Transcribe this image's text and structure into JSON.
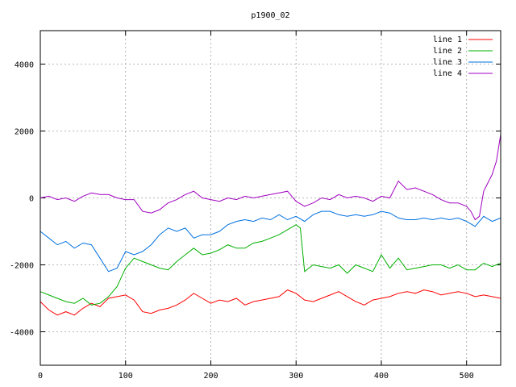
{
  "chart_data": {
    "type": "line",
    "title": "p1900_02",
    "xlabel": "",
    "ylabel": "",
    "xlim": [
      0,
      540
    ],
    "ylim": [
      -5000,
      5000
    ],
    "x_ticks": [
      0,
      100,
      200,
      300,
      400,
      500
    ],
    "y_ticks": [
      -4000,
      -2000,
      0,
      2000,
      4000
    ],
    "grid": true,
    "legend_position": "top-right",
    "series": [
      {
        "name": "line 1",
        "color": "#ff0000",
        "x": [
          0,
          10,
          20,
          30,
          40,
          50,
          60,
          70,
          80,
          90,
          100,
          110,
          120,
          130,
          140,
          150,
          160,
          170,
          180,
          190,
          200,
          210,
          220,
          230,
          240,
          250,
          260,
          270,
          280,
          290,
          300,
          310,
          320,
          330,
          340,
          350,
          360,
          370,
          380,
          390,
          400,
          410,
          420,
          430,
          440,
          450,
          460,
          470,
          480,
          490,
          500,
          510,
          520,
          530,
          540
        ],
        "y": [
          -3100,
          -3350,
          -3500,
          -3400,
          -3500,
          -3300,
          -3150,
          -3250,
          -3000,
          -2950,
          -2900,
          -3050,
          -3400,
          -3450,
          -3350,
          -3300,
          -3200,
          -3050,
          -2850,
          -3000,
          -3150,
          -3050,
          -3100,
          -3000,
          -3200,
          -3100,
          -3050,
          -3000,
          -2950,
          -2750,
          -2850,
          -3050,
          -3100,
          -3000,
          -2900,
          -2800,
          -2950,
          -3100,
          -3200,
          -3050,
          -3000,
          -2950,
          -2850,
          -2800,
          -2850,
          -2750,
          -2800,
          -2900,
          -2850,
          -2800,
          -2850,
          -2950,
          -2900,
          -2950,
          -3000
        ]
      },
      {
        "name": "line 2",
        "color": "#00b000",
        "x": [
          0,
          10,
          20,
          30,
          40,
          50,
          60,
          70,
          80,
          90,
          100,
          110,
          120,
          130,
          140,
          150,
          160,
          170,
          180,
          190,
          200,
          210,
          220,
          230,
          240,
          250,
          260,
          270,
          280,
          290,
          300,
          305,
          310,
          320,
          330,
          340,
          350,
          360,
          370,
          380,
          390,
          400,
          410,
          420,
          430,
          440,
          450,
          460,
          470,
          480,
          490,
          500,
          510,
          520,
          530,
          540
        ],
        "y": [
          -2800,
          -2900,
          -3000,
          -3100,
          -3150,
          -3000,
          -3200,
          -3150,
          -2950,
          -2650,
          -2100,
          -1800,
          -1900,
          -2000,
          -2100,
          -2150,
          -1900,
          -1700,
          -1500,
          -1700,
          -1650,
          -1550,
          -1400,
          -1500,
          -1500,
          -1350,
          -1300,
          -1200,
          -1100,
          -950,
          -800,
          -900,
          -2200,
          -2000,
          -2050,
          -2100,
          -2000,
          -2250,
          -2000,
          -2100,
          -2200,
          -1700,
          -2100,
          -1800,
          -2150,
          -2100,
          -2050,
          -2000,
          -2000,
          -2100,
          -2000,
          -2150,
          -2150,
          -1950,
          -2050,
          -1950
        ]
      },
      {
        "name": "line 3",
        "color": "#0070e0",
        "x": [
          0,
          10,
          20,
          30,
          40,
          50,
          60,
          70,
          80,
          90,
          100,
          110,
          120,
          130,
          140,
          150,
          160,
          170,
          180,
          190,
          200,
          210,
          220,
          230,
          240,
          250,
          260,
          270,
          280,
          290,
          300,
          310,
          320,
          330,
          340,
          350,
          360,
          370,
          380,
          390,
          400,
          410,
          420,
          430,
          440,
          450,
          460,
          470,
          480,
          490,
          500,
          510,
          520,
          530,
          540
        ],
        "y": [
          -1000,
          -1200,
          -1400,
          -1300,
          -1500,
          -1350,
          -1400,
          -1800,
          -2200,
          -2100,
          -1600,
          -1700,
          -1600,
          -1400,
          -1100,
          -900,
          -1000,
          -900,
          -1200,
          -1100,
          -1100,
          -1000,
          -800,
          -700,
          -650,
          -700,
          -600,
          -650,
          -500,
          -650,
          -550,
          -700,
          -500,
          -400,
          -400,
          -500,
          -550,
          -500,
          -550,
          -500,
          -400,
          -450,
          -600,
          -650,
          -650,
          -600,
          -650,
          -600,
          -650,
          -600,
          -700,
          -850,
          -550,
          -700,
          -600
        ]
      },
      {
        "name": "line 4",
        "color": "#a000c0",
        "x": [
          0,
          10,
          20,
          30,
          40,
          50,
          60,
          70,
          80,
          90,
          100,
          110,
          120,
          130,
          140,
          150,
          160,
          170,
          180,
          190,
          200,
          210,
          220,
          230,
          240,
          250,
          260,
          270,
          280,
          290,
          300,
          310,
          320,
          330,
          340,
          350,
          360,
          370,
          380,
          390,
          400,
          410,
          420,
          430,
          440,
          450,
          460,
          470,
          480,
          490,
          500,
          505,
          510,
          515,
          520,
          530,
          535,
          540
        ],
        "y": [
          0,
          50,
          -50,
          0,
          -100,
          50,
          150,
          100,
          100,
          0,
          -50,
          -50,
          -400,
          -450,
          -350,
          -150,
          -50,
          100,
          200,
          0,
          -50,
          -100,
          0,
          -50,
          50,
          0,
          50,
          100,
          150,
          200,
          -100,
          -250,
          -150,
          0,
          -50,
          100,
          0,
          50,
          0,
          -100,
          50,
          0,
          500,
          250,
          300,
          200,
          100,
          -50,
          -150,
          -150,
          -250,
          -400,
          -650,
          -550,
          200,
          700,
          1100,
          1900
        ]
      }
    ]
  }
}
